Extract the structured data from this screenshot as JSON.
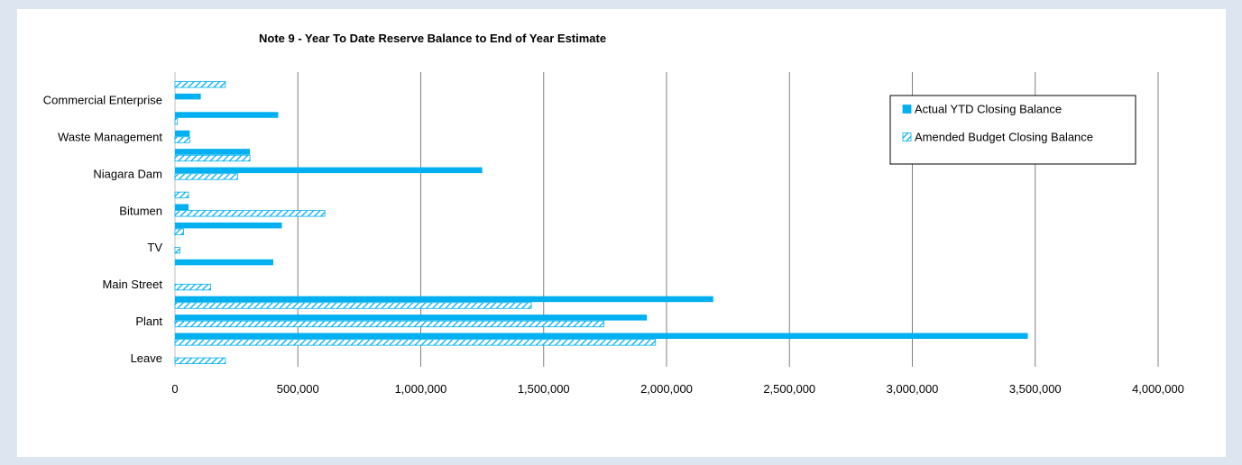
{
  "chart_data": {
    "type": "bar",
    "orientation": "horizontal",
    "title": "Note 9 - Year To Date Reserve Balance to End of Year Estimate",
    "xlabel": "",
    "ylabel": "",
    "xlim": [
      0,
      4000000
    ],
    "x_ticks": [
      0,
      500000,
      1000000,
      1500000,
      2000000,
      2500000,
      3000000,
      3500000,
      4000000
    ],
    "x_tick_labels": [
      "0",
      "500,000",
      "1,000,000",
      "1,500,000",
      "2,000,000",
      "2,500,000",
      "3,000,000",
      "3,500,000",
      "4,000,000"
    ],
    "grid": "vertical",
    "legend_position": "top-right",
    "colors": {
      "actual": "#00b0f0",
      "budget": "#00b0f0",
      "gridline": "#808080"
    },
    "category_labels": {
      "0": "Leave",
      "2": "Plant",
      "4": "Main Street",
      "6": "TV",
      "8": "Bitumen",
      "10": "Niagara Dam",
      "12": "Waste Management",
      "14": "Commercial Enterprise"
    },
    "categories": [
      "Leave",
      "",
      "Plant",
      "",
      "Main Street",
      "",
      "TV",
      "",
      "Bitumen",
      "",
      "Niagara Dam",
      "",
      "Waste Management",
      "",
      "Commercial Enterprise",
      ""
    ],
    "series": [
      {
        "name": "Actual YTD Closing Balance",
        "pattern": "solid",
        "values": [
          0,
          3470000,
          1920000,
          2190000,
          0,
          400000,
          0,
          435000,
          55000,
          0,
          1250000,
          305000,
          60000,
          420000,
          105000,
          0
        ]
      },
      {
        "name": "Amended Budget Closing Balance",
        "pattern": "hatched",
        "values": [
          205000,
          1955000,
          1745000,
          1450000,
          145000,
          0,
          20000,
          35000,
          610000,
          55000,
          255000,
          305000,
          60000,
          10000,
          0,
          205000
        ]
      }
    ]
  }
}
